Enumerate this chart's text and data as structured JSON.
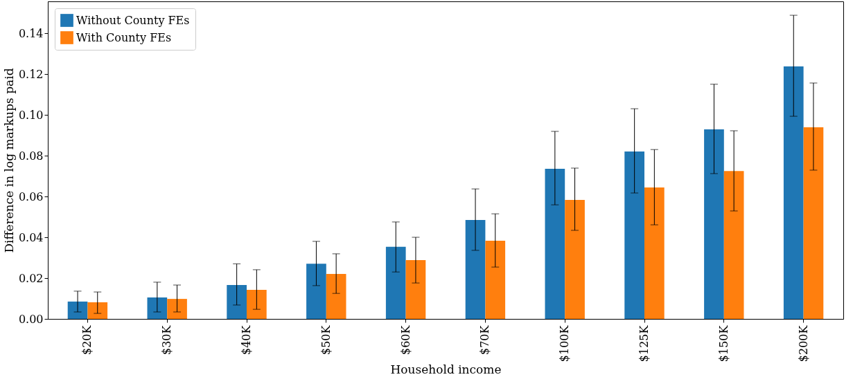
{
  "chart_data": {
    "type": "bar",
    "xlabel": "Household income",
    "ylabel": "Difference in log markups paid",
    "categories": [
      "$20K",
      "$30K",
      "$40K",
      "$50K",
      "$60K",
      "$70K",
      "$100K",
      "$125K",
      "$150K",
      "$200K"
    ],
    "ylim": [
      0,
      0.1556
    ],
    "yticks": [
      {
        "value": 0,
        "label": "0.00"
      },
      {
        "value": 0.02,
        "label": "0.02"
      },
      {
        "value": 0.04,
        "label": "0.04"
      },
      {
        "value": 0.06,
        "label": "0.06"
      },
      {
        "value": 0.08,
        "label": "0.08"
      },
      {
        "value": 0.1,
        "label": "0.10"
      },
      {
        "value": 0.12,
        "label": "0.12"
      },
      {
        "value": 0.14,
        "label": "0.14"
      }
    ],
    "legend": "top left",
    "series": [
      {
        "name": "Without County FEs",
        "color": "#1f77b4",
        "values": [
          0.0085,
          0.0105,
          0.0166,
          0.027,
          0.0353,
          0.0485,
          0.0736,
          0.082,
          0.0929,
          0.1237
        ],
        "errors": [
          [
            0.0034,
            0.0136
          ],
          [
            0.0034,
            0.018
          ],
          [
            0.0068,
            0.027
          ],
          [
            0.0163,
            0.038
          ],
          [
            0.023,
            0.0475
          ],
          [
            0.0336,
            0.0637
          ],
          [
            0.0559,
            0.0919
          ],
          [
            0.0617,
            0.103
          ],
          [
            0.0712,
            0.115
          ],
          [
            0.0993,
            0.1488
          ]
        ]
      },
      {
        "name": "With County FEs",
        "color": "#ff7f0e",
        "values": [
          0.0081,
          0.0098,
          0.0142,
          0.022,
          0.0288,
          0.0383,
          0.0583,
          0.0644,
          0.0725,
          0.0939
        ],
        "errors": [
          [
            0.0027,
            0.0132
          ],
          [
            0.0034,
            0.0166
          ],
          [
            0.0047,
            0.0241
          ],
          [
            0.0125,
            0.0319
          ],
          [
            0.0176,
            0.04
          ],
          [
            0.0254,
            0.0515
          ],
          [
            0.0434,
            0.0739
          ],
          [
            0.0461,
            0.083
          ],
          [
            0.0529,
            0.0922
          ],
          [
            0.0729,
            0.1156
          ]
        ]
      }
    ]
  }
}
